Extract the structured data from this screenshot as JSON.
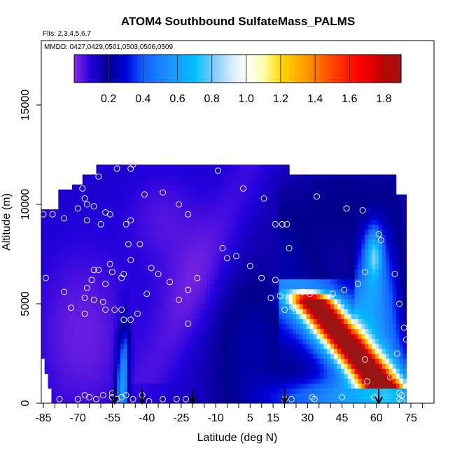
{
  "chart_data": {
    "type": "heatmap",
    "title": "ATOM4 Southbound SulfateMass_PALMS",
    "flights_label": "Flts: 2,3,4,5,6,7",
    "mmdd_label": "MMDD: 0427,0429,0501,0503,0506,0509",
    "xlabel": "Latitude (deg N)",
    "ylabel": "Altitude (m)",
    "xlim": [
      -88,
      82
    ],
    "ylim": [
      0,
      17500
    ],
    "x_ticks": [
      -85,
      -70,
      -55,
      -40,
      -25,
      -10,
      5,
      15,
      30,
      45,
      60,
      75
    ],
    "x_minor_ticks": [
      -80,
      -75,
      -65,
      -60,
      -50,
      -45,
      -35,
      -30,
      -20,
      -15,
      -5,
      0,
      10,
      20,
      25,
      35,
      40,
      50,
      55,
      65,
      70,
      80
    ],
    "y_ticks": [
      0,
      5000,
      10000,
      15000
    ],
    "colorbar": {
      "range": [
        0,
        1.9
      ],
      "ticks": [
        "0.2",
        "0.4",
        "0.6",
        "0.8",
        "1.0",
        "1.2",
        "1.4",
        "1.6",
        "1.8"
      ],
      "tick_values": [
        0.2,
        0.4,
        0.6,
        0.8,
        1.0,
        1.2,
        1.4,
        1.6,
        1.8
      ],
      "stops": [
        {
          "v": 0.0,
          "color": "#8a2be2"
        },
        {
          "v": 0.1,
          "color": "#2200dd"
        },
        {
          "v": 0.2,
          "color": "#00008b"
        },
        {
          "v": 0.3,
          "color": "#0000dd"
        },
        {
          "v": 0.4,
          "color": "#1060ff"
        },
        {
          "v": 0.55,
          "color": "#1e90ff"
        },
        {
          "v": 0.7,
          "color": "#00bfff"
        },
        {
          "v": 0.82,
          "color": "#87cefa"
        },
        {
          "v": 0.92,
          "color": "#d8ecff"
        },
        {
          "v": 1.0,
          "color": "#ffffff"
        },
        {
          "v": 1.1,
          "color": "#ffffb0"
        },
        {
          "v": 1.2,
          "color": "#ffd700"
        },
        {
          "v": 1.35,
          "color": "#ff9900"
        },
        {
          "v": 1.5,
          "color": "#ff4500"
        },
        {
          "v": 1.65,
          "color": "#ff0000"
        },
        {
          "v": 1.8,
          "color": "#c40000"
        },
        {
          "v": 1.9,
          "color": "#9b1515"
        }
      ]
    },
    "flight_arrows_lat": [
      -54,
      -42,
      -20,
      20,
      61
    ],
    "samples": [
      [
        -85,
        9500
      ],
      [
        -81,
        9500
      ],
      [
        -76,
        9300
      ],
      [
        -70,
        9800
      ],
      [
        -67,
        10300
      ],
      [
        -66,
        10000
      ],
      [
        -66,
        9200
      ],
      [
        -63,
        9900
      ],
      [
        -60,
        9000
      ],
      [
        -58,
        9600
      ],
      [
        -56,
        9500
      ],
      [
        -49,
        9000
      ],
      [
        -47,
        9200
      ],
      [
        -41,
        10500
      ],
      [
        -33,
        10600
      ],
      [
        -26,
        10000
      ],
      [
        -22,
        9500
      ],
      [
        -68,
        10800
      ],
      [
        -61,
        11400
      ],
      [
        -53,
        11800
      ],
      [
        -47,
        11800
      ],
      [
        -46,
        12000
      ],
      [
        -9,
        11700
      ],
      [
        2,
        10800
      ],
      [
        11,
        10300
      ],
      [
        28,
        11700
      ],
      [
        34,
        10400
      ],
      [
        47,
        9800
      ],
      [
        54,
        9700
      ],
      [
        -84,
        6300
      ],
      [
        -76,
        5600
      ],
      [
        -73,
        4800
      ],
      [
        -67,
        5300
      ],
      [
        -66,
        5800
      ],
      [
        -64,
        6200
      ],
      [
        -63,
        6700
      ],
      [
        -61,
        6700
      ],
      [
        -58,
        6000
      ],
      [
        -56,
        7000
      ],
      [
        -55,
        6600
      ],
      [
        -51,
        6300
      ],
      [
        -50,
        6500
      ],
      [
        -48,
        8000
      ],
      [
        -47,
        7200
      ],
      [
        -43,
        8000
      ],
      [
        -38,
        6800
      ],
      [
        -35,
        6500
      ],
      [
        -30,
        6100
      ],
      [
        -26,
        5200
      ],
      [
        -22,
        5700
      ],
      [
        -18,
        6300
      ],
      [
        -7,
        7800
      ],
      [
        -5,
        7300
      ],
      [
        -1,
        7400
      ],
      [
        5,
        6900
      ],
      [
        10,
        6300
      ],
      [
        16,
        6200
      ],
      [
        22,
        7800
      ],
      [
        -67,
        4500
      ],
      [
        -63,
        5200
      ],
      [
        -59,
        5100
      ],
      [
        -58,
        4700
      ],
      [
        -54,
        4700
      ],
      [
        -51,
        4700
      ],
      [
        -50,
        4200
      ],
      [
        -47,
        4200
      ],
      [
        -44,
        4500
      ],
      [
        -40,
        5500
      ],
      [
        -22,
        4000
      ],
      [
        16,
        9000
      ],
      [
        19,
        9000
      ],
      [
        21,
        9000
      ],
      [
        14,
        5300
      ],
      [
        18,
        5400
      ],
      [
        20,
        4700
      ],
      [
        24,
        4800
      ],
      [
        28,
        5600
      ],
      [
        31,
        5500
      ],
      [
        41,
        5500
      ],
      [
        46,
        5700
      ],
      [
        52,
        6000
      ],
      [
        55,
        6600
      ],
      [
        61,
        8500
      ],
      [
        62,
        8200
      ],
      [
        68,
        6500
      ],
      [
        70,
        5000
      ],
      [
        72,
        3800
      ],
      [
        73,
        3200
      ],
      [
        69,
        2500
      ],
      [
        70,
        500
      ],
      [
        71,
        400
      ],
      [
        55,
        2200
      ],
      [
        56,
        1100
      ],
      [
        66,
        1300
      ],
      [
        -70,
        200
      ],
      [
        -67,
        400
      ],
      [
        -65,
        300
      ],
      [
        -62,
        200
      ],
      [
        -59,
        400
      ],
      [
        -55,
        300
      ],
      [
        -53,
        200
      ],
      [
        -51,
        300
      ],
      [
        -49,
        400
      ],
      [
        -46,
        200
      ],
      [
        -42,
        400
      ],
      [
        -39,
        100
      ],
      [
        -33,
        200
      ],
      [
        -27,
        200
      ],
      [
        -23,
        200
      ],
      [
        20,
        200
      ],
      [
        23,
        200
      ],
      [
        32,
        300
      ],
      [
        33,
        200
      ],
      [
        45,
        300
      ],
      [
        59,
        300
      ],
      [
        70,
        200
      ],
      [
        71,
        100
      ],
      [
        -78,
        200
      ],
      [
        -55,
        500
      ]
    ]
  }
}
